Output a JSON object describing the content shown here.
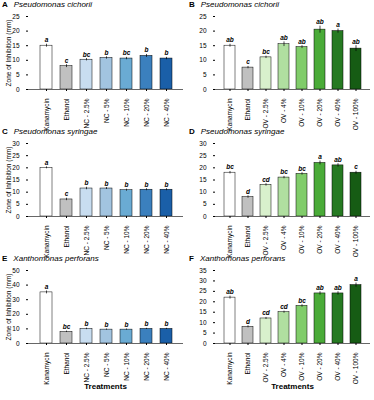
{
  "chart_data": [
    {
      "type": "bar",
      "label": "A",
      "title": "Pseudomonas cichorii",
      "categories": [
        "Kanamycin",
        "Ethanol",
        "NC - 2.5%",
        "NC - 5%",
        "NC - 10%",
        "NC - 20%",
        "NC - 40%"
      ],
      "values": [
        15.0,
        8.0,
        10.2,
        10.8,
        10.6,
        11.5,
        10.6
      ],
      "errors": [
        0.5,
        0.5,
        0.4,
        0.4,
        0.4,
        0.5,
        0.4
      ],
      "letters": [
        "a",
        "c",
        "bc",
        "b",
        "bc",
        "b",
        "b"
      ],
      "colors": [
        "#ffffff",
        "#c0c0c0",
        "#c8ddf0",
        "#a2c4e0",
        "#6aabd3",
        "#3b80be",
        "#1a5fa8"
      ],
      "ylim": [
        0,
        25
      ],
      "yticks": [
        0,
        5,
        10,
        15,
        20,
        25
      ],
      "ylabel": "Zone of Inhibition (mm)"
    },
    {
      "type": "bar",
      "label": "B",
      "title": "Pseudomonas cichorii",
      "categories": [
        "Kanamycin",
        "Ethanol",
        "OV - 2.5%",
        "OV - 4%",
        "OV - 10%",
        "OV - 20%",
        "OV - 40%",
        "OV - 100%"
      ],
      "values": [
        15.0,
        7.5,
        11.0,
        15.5,
        14.5,
        20.5,
        20.0,
        14.0
      ],
      "errors": [
        0.5,
        0.4,
        0.4,
        0.8,
        0.5,
        1.2,
        0.7,
        1.0
      ],
      "letters": [
        "ab",
        "c",
        "bc",
        "ab",
        "ab",
        "ab",
        "a",
        "ab"
      ],
      "colors": [
        "#ffffff",
        "#c0c0c0",
        "#d8f0cc",
        "#b0dfa0",
        "#80cc6a",
        "#4aab38",
        "#267a22",
        "#165c14"
      ],
      "ylim": [
        0,
        25
      ],
      "yticks": [
        0,
        5,
        10,
        15,
        20,
        25
      ]
    },
    {
      "type": "bar",
      "label": "C",
      "title": "Pseudomonas syringae",
      "categories": [
        "Kanamycin",
        "Ethanol",
        "NC - 2.5%",
        "NC - 5%",
        "NC - 10%",
        "NC - 20%",
        "NC - 40%"
      ],
      "values": [
        20.0,
        7.0,
        11.5,
        11.5,
        10.8,
        11.0,
        11.0
      ],
      "errors": [
        0.4,
        0.5,
        0.5,
        0.4,
        0.4,
        0.4,
        0.4
      ],
      "letters": [
        "a",
        "c",
        "b",
        "b",
        "b",
        "b",
        "b"
      ],
      "colors": [
        "#ffffff",
        "#c0c0c0",
        "#c8ddf0",
        "#a2c4e0",
        "#6aabd3",
        "#3b80be",
        "#1a5fa8"
      ],
      "ylim": [
        0,
        30
      ],
      "yticks": [
        0,
        5,
        10,
        15,
        20,
        25,
        30
      ],
      "ylabel": "Zone of Inhibition (mm)"
    },
    {
      "type": "bar",
      "label": "D",
      "title": "Pseudomonas syringae",
      "categories": [
        "Kanamycin",
        "Ethanol",
        "OV - 2.5%",
        "OV - 4%",
        "OV - 10%",
        "OV - 20%",
        "OV - 40%",
        "OV - 100%"
      ],
      "values": [
        18.0,
        8.0,
        13.0,
        16.0,
        17.5,
        22.0,
        21.0,
        18.0
      ],
      "errors": [
        0.5,
        0.5,
        0.5,
        0.5,
        0.5,
        0.8,
        0.7,
        0.6
      ],
      "letters": [
        "bc",
        "d",
        "cd",
        "bc",
        "bc",
        "a",
        "ab",
        "c"
      ],
      "colors": [
        "#ffffff",
        "#c0c0c0",
        "#d8f0cc",
        "#b0dfa0",
        "#80cc6a",
        "#4aab38",
        "#267a22",
        "#165c14"
      ],
      "ylim": [
        0,
        30
      ],
      "yticks": [
        0,
        5,
        10,
        15,
        20,
        25,
        30
      ]
    },
    {
      "type": "bar",
      "label": "E",
      "title": "Xanthomonas perforans",
      "categories": [
        "Kanamycin",
        "Ethanol",
        "NC - 2.5%",
        "NC - 5%",
        "NC - 10%",
        "NC - 20%",
        "NC - 40%"
      ],
      "values": [
        35.0,
        8.0,
        10.0,
        9.5,
        9.5,
        10.0,
        10.0
      ],
      "errors": [
        1.0,
        0.5,
        0.5,
        0.4,
        0.4,
        0.4,
        0.4
      ],
      "letters": [
        "a",
        "bc",
        "b",
        "b",
        "b",
        "b",
        "b"
      ],
      "colors": [
        "#ffffff",
        "#c0c0c0",
        "#c8ddf0",
        "#a2c4e0",
        "#6aabd3",
        "#3b80be",
        "#1a5fa8"
      ],
      "ylim": [
        0,
        50
      ],
      "yticks": [
        0,
        10,
        20,
        30,
        40,
        50
      ],
      "ylabel": "Zone of Inhibition (mm)",
      "xlabel": "Treatments"
    },
    {
      "type": "bar",
      "label": "F",
      "title": "Xanthomonas perforans",
      "categories": [
        "Kanamycin",
        "Ethanol",
        "OV - 2.5%",
        "OV - 4%",
        "OV - 10%",
        "OV - 20%",
        "OV - 40%",
        "OV - 100%"
      ],
      "values": [
        22.0,
        8.0,
        12.0,
        15.0,
        18.0,
        24.0,
        24.0,
        28.0
      ],
      "errors": [
        0.7,
        0.5,
        0.5,
        0.5,
        0.6,
        0.8,
        0.8,
        1.0
      ],
      "letters": [
        "ab",
        "d",
        "cd",
        "cd",
        "bc",
        "ab",
        "ab",
        "a"
      ],
      "colors": [
        "#ffffff",
        "#c0c0c0",
        "#d8f0cc",
        "#b0dfa0",
        "#80cc6a",
        "#4aab38",
        "#267a22",
        "#165c14"
      ],
      "ylim": [
        0,
        35
      ],
      "yticks": [
        0,
        5,
        10,
        15,
        20,
        25,
        30,
        35
      ],
      "xlabel": "Treatments"
    }
  ]
}
